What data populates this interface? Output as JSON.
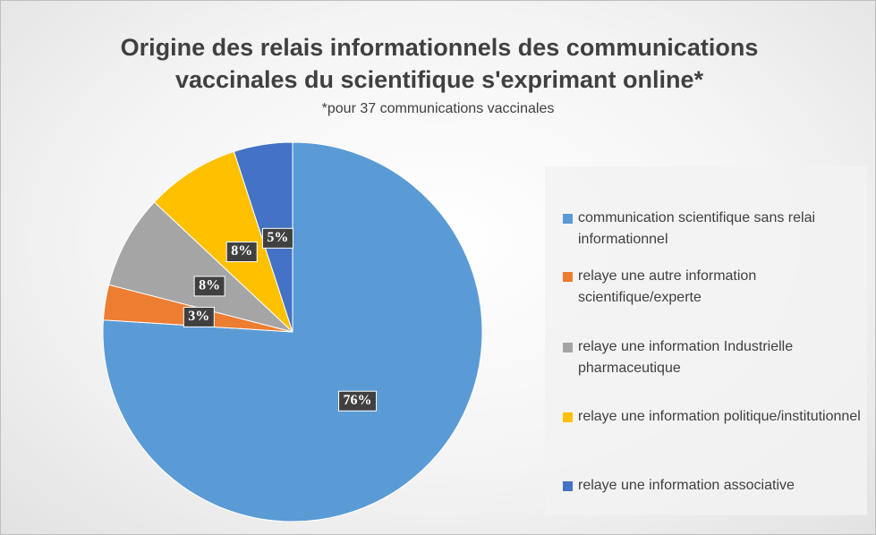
{
  "chart_data": {
    "type": "pie",
    "title": "Origine des relais informationnels des communications vaccinales du scientifique s'exprimant online*",
    "subtitle": "*pour 37 communications vaccinales",
    "categories": [
      "communication scientifique sans relai informationnel",
      "relaye une autre information scientifique/experte",
      "relaye une information Industrielle pharmaceutique",
      "relaye une information politique/institutionnel",
      "relaye une information associative"
    ],
    "values": [
      76,
      3,
      8,
      8,
      5
    ],
    "value_labels": [
      "76%",
      "3%",
      "8%",
      "8%",
      "5%"
    ],
    "colors": [
      "#5b9bd5",
      "#ed7d31",
      "#a5a5a5",
      "#ffc000",
      "#4472c4"
    ],
    "legend": "right"
  }
}
